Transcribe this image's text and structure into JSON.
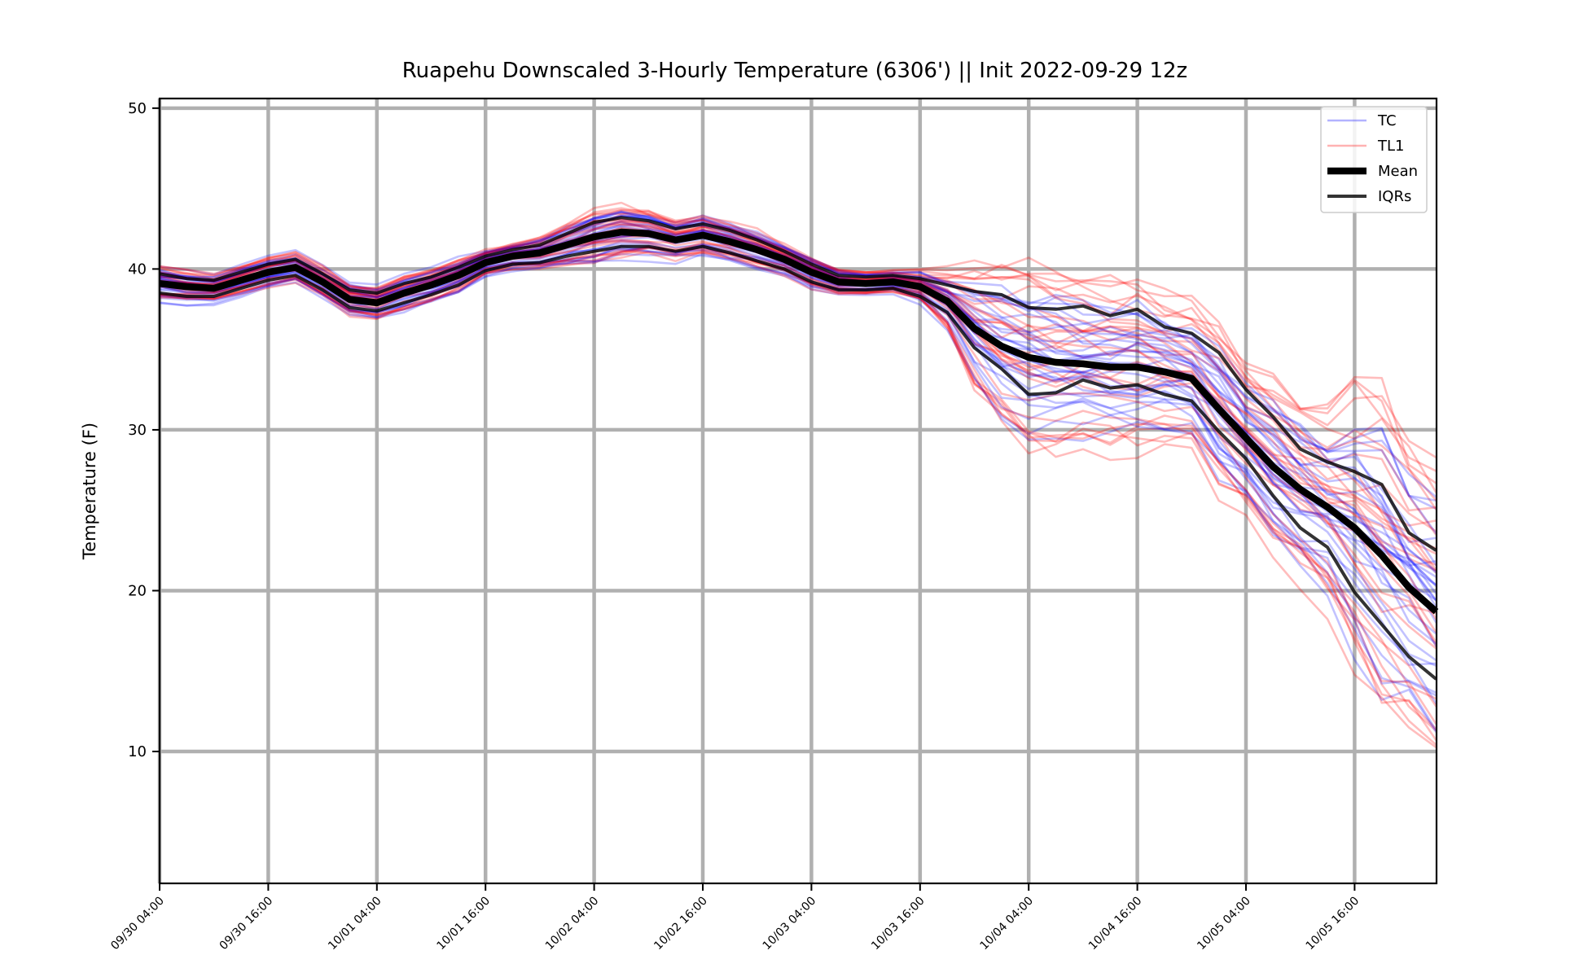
{
  "chart_data": {
    "type": "line",
    "title": "Ruapehu Downscaled 3-Hourly Temperature (6306') || Init 2022-09-29 12z",
    "ylabel": "Temperature (F)",
    "xlabel": "",
    "ylim": [
      1.8,
      50.6
    ],
    "x_start": "09/30 04:00",
    "step_hours": 3,
    "grid": true,
    "legend_position": "top-right",
    "xticks": [
      "09/30 04:00",
      "09/30 16:00",
      "10/01 04:00",
      "10/01 16:00",
      "10/02 04:00",
      "10/02 16:00",
      "10/03 04:00",
      "10/03 16:00",
      "10/04 04:00",
      "10/04 16:00",
      "10/05 04:00",
      "10/05 16:00"
    ],
    "yticks": [
      10,
      20,
      30,
      40,
      50
    ],
    "legend": [
      {
        "label": "TC",
        "color": "#0000ff"
      },
      {
        "label": "TL1",
        "color": "#ff0000"
      },
      {
        "label": "Mean",
        "color": "#000000"
      },
      {
        "label": "IQRs",
        "color": "#000000"
      }
    ],
    "series": [
      {
        "name": "Mean",
        "values": [
          39.1,
          38.9,
          38.8,
          39.3,
          39.8,
          40.1,
          39.2,
          38.1,
          37.9,
          38.5,
          39.0,
          39.6,
          40.4,
          40.8,
          41.0,
          41.5,
          42.0,
          42.3,
          42.2,
          41.8,
          42.1,
          41.7,
          41.2,
          40.6,
          39.8,
          39.2,
          39.1,
          39.2,
          38.9,
          38.0,
          36.3,
          35.2,
          34.5,
          34.2,
          34.1,
          33.9,
          33.9,
          33.6,
          33.2,
          31.3,
          29.5,
          27.7,
          26.3,
          25.2,
          23.9,
          22.2,
          20.2,
          18.7
        ]
      },
      {
        "name": "IQR upper",
        "values": [
          39.7,
          39.4,
          39.3,
          39.8,
          40.3,
          40.6,
          39.7,
          38.7,
          38.5,
          39.1,
          39.5,
          40.1,
          40.8,
          41.2,
          41.5,
          42.2,
          42.9,
          43.2,
          43.0,
          42.5,
          42.8,
          42.4,
          41.8,
          41.1,
          40.3,
          39.6,
          39.5,
          39.6,
          39.4,
          39.0,
          38.6,
          38.4,
          37.6,
          37.5,
          37.7,
          37.1,
          37.5,
          36.4,
          36.0,
          34.8,
          32.5,
          30.8,
          28.8,
          28.0,
          27.4,
          26.6,
          23.6,
          22.5
        ]
      },
      {
        "name": "IQR lower",
        "values": [
          38.5,
          38.3,
          38.3,
          38.8,
          39.3,
          39.6,
          38.7,
          37.6,
          37.4,
          37.9,
          38.4,
          39.0,
          39.9,
          40.3,
          40.4,
          40.8,
          41.1,
          41.4,
          41.4,
          41.1,
          41.4,
          41.0,
          40.5,
          40.0,
          39.2,
          38.7,
          38.7,
          38.8,
          38.3,
          37.3,
          35.1,
          33.8,
          32.2,
          32.3,
          33.1,
          32.6,
          32.8,
          32.2,
          31.8,
          29.9,
          28.2,
          25.9,
          23.9,
          22.7,
          19.9,
          17.9,
          15.9,
          14.5
        ]
      }
    ]
  }
}
